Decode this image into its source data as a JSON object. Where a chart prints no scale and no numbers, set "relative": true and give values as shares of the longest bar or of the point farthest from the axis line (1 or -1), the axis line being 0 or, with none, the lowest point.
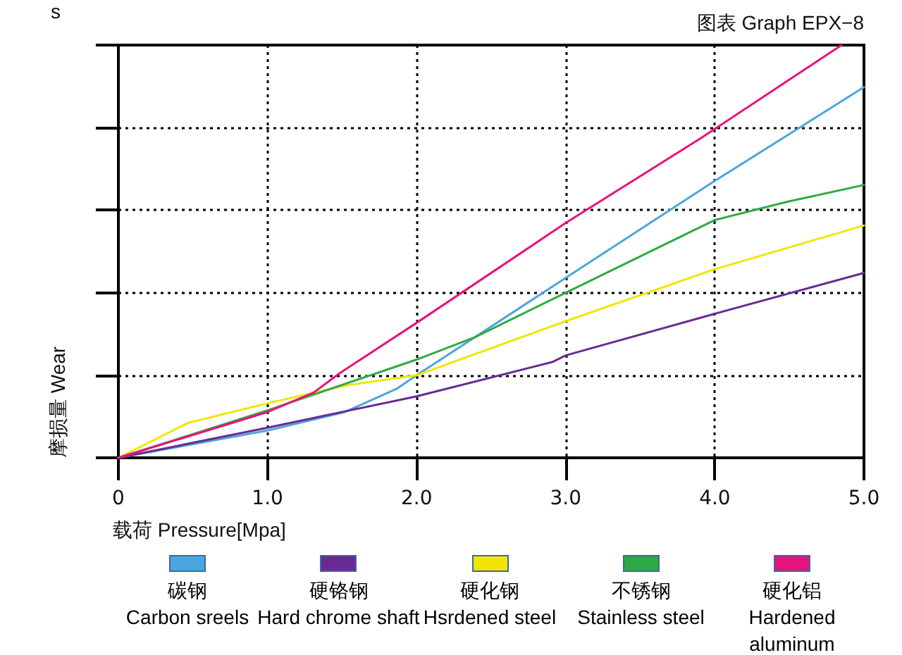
{
  "chart_data": {
    "type": "line",
    "relative": true,
    "title": "图表 Graph EPX−8",
    "xlabel": "载荷  Pressure[Mpa]",
    "ylabel": "摩损量  Wear",
    "annotations": [
      "s"
    ],
    "xlim": [
      0,
      5
    ],
    "xticks": [
      0,
      {
        "value": 1,
        "label": "1.0"
      },
      {
        "value": 2,
        "label": "2.0"
      },
      {
        "value": 3,
        "label": "3.0"
      },
      {
        "value": 4,
        "label": "4.0"
      },
      {
        "value": 5,
        "label": "5.0"
      }
    ],
    "grid": true,
    "legend": "bottom",
    "marker": "none",
    "line_style": "solid",
    "tick_labels": "x",
    "series": [
      {
        "name": "碳钢\nCarbon sreels",
        "color": "#4ba6de",
        "x": [
          0,
          1.0,
          1.52,
          1.87,
          2.0,
          3.0,
          4.0,
          5.0
        ],
        "values": [
          0,
          0.066,
          0.111,
          0.168,
          0.2,
          0.436,
          0.671,
          0.898
        ]
      },
      {
        "name": "硬铬钢\nHard chrome shaft",
        "color": "#6a2a96",
        "x": [
          0,
          1.0,
          2.0,
          2.91,
          3.0,
          4.0,
          5.0
        ],
        "values": [
          0,
          0.073,
          0.149,
          0.232,
          0.248,
          0.349,
          0.448
        ]
      },
      {
        "name": "硬化钢\nHsrdened steel",
        "color": "#f2e600",
        "x": [
          0,
          0.47,
          1.0,
          1.52,
          2.0,
          3.0,
          4.0,
          5.0
        ],
        "values": [
          0,
          0.085,
          0.132,
          0.175,
          0.2,
          0.331,
          0.457,
          0.563
        ]
      },
      {
        "name": "不锈钢\nStainless steel",
        "color": "#2eaa44",
        "x": [
          0,
          0.47,
          1.0,
          2.0,
          2.39,
          3.0,
          4.0,
          4.48,
          5.0
        ],
        "values": [
          0,
          0.054,
          0.115,
          0.238,
          0.292,
          0.4,
          0.576,
          0.62,
          0.661
        ]
      },
      {
        "name": "硬化铝\nHardened aluminum",
        "color": "#e8127c",
        "x": [
          0,
          1.0,
          1.31,
          1.48,
          2.0,
          3.0,
          3.9,
          4.85
        ],
        "values": [
          0,
          0.111,
          0.158,
          0.204,
          0.327,
          0.569,
          0.773,
          1
        ]
      }
    ]
  }
}
